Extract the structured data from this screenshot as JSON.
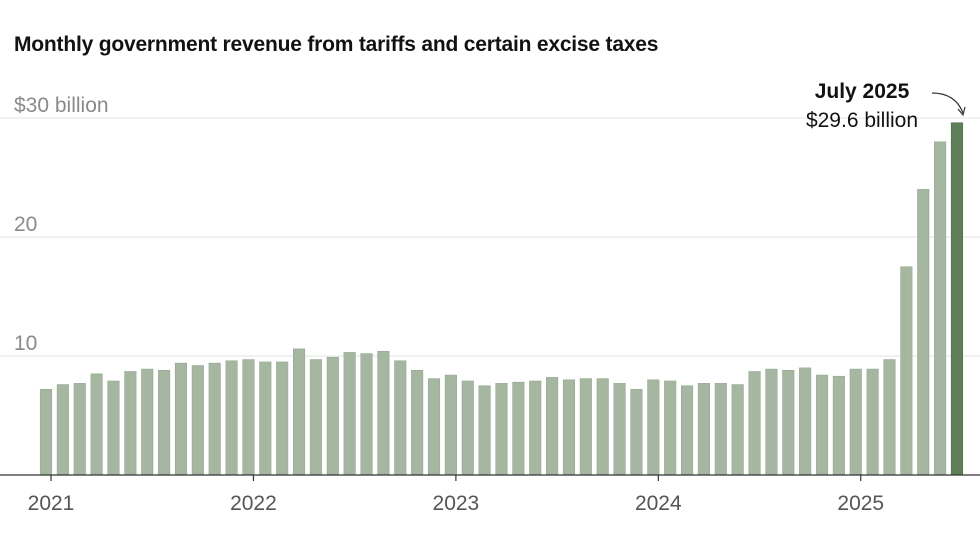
{
  "chart_data": {
    "type": "bar",
    "title": "Monthly government revenue from tariffs and certain excise taxes",
    "xlabel": "",
    "ylabel": "",
    "unit": "$ billion",
    "ylim": [
      0,
      30
    ],
    "grid": true,
    "y_ticks": [
      {
        "value": 30,
        "label": "$30 billion"
      },
      {
        "value": 20,
        "label": "20"
      },
      {
        "value": 10,
        "label": "10"
      }
    ],
    "x_ticks": [
      {
        "index": 0,
        "label": "2021"
      },
      {
        "index": 12,
        "label": "2022"
      },
      {
        "index": 24,
        "label": "2023"
      },
      {
        "index": 36,
        "label": "2024"
      },
      {
        "index": 48,
        "label": "2025"
      }
    ],
    "categories": [
      "Jan 2021",
      "Feb 2021",
      "Mar 2021",
      "Apr 2021",
      "May 2021",
      "Jun 2021",
      "Jul 2021",
      "Aug 2021",
      "Sep 2021",
      "Oct 2021",
      "Nov 2021",
      "Dec 2021",
      "Jan 2022",
      "Feb 2022",
      "Mar 2022",
      "Apr 2022",
      "May 2022",
      "Jun 2022",
      "Jul 2022",
      "Aug 2022",
      "Sep 2022",
      "Oct 2022",
      "Nov 2022",
      "Dec 2022",
      "Jan 2023",
      "Feb 2023",
      "Mar 2023",
      "Apr 2023",
      "May 2023",
      "Jun 2023",
      "Jul 2023",
      "Aug 2023",
      "Sep 2023",
      "Oct 2023",
      "Nov 2023",
      "Dec 2023",
      "Jan 2024",
      "Feb 2024",
      "Mar 2024",
      "Apr 2024",
      "May 2024",
      "Jun 2024",
      "Jul 2024",
      "Aug 2024",
      "Sep 2024",
      "Oct 2024",
      "Nov 2024",
      "Dec 2024",
      "Jan 2025",
      "Feb 2025",
      "Mar 2025",
      "Apr 2025",
      "May 2025",
      "Jun 2025",
      "Jul 2025"
    ],
    "values": [
      7.2,
      7.6,
      7.7,
      8.5,
      7.9,
      8.7,
      8.9,
      8.8,
      9.4,
      9.2,
      9.4,
      9.6,
      9.7,
      9.5,
      9.5,
      10.6,
      9.7,
      9.9,
      10.3,
      10.2,
      10.4,
      9.6,
      8.8,
      8.1,
      8.4,
      7.9,
      7.5,
      7.7,
      7.8,
      7.9,
      8.2,
      8.0,
      8.1,
      8.1,
      7.7,
      7.2,
      8.0,
      7.9,
      7.5,
      7.7,
      7.7,
      7.6,
      8.7,
      8.9,
      8.8,
      9.0,
      8.4,
      8.3,
      8.9,
      8.9,
      9.7,
      17.5,
      24.0,
      28.0,
      29.6
    ],
    "highlight_index": 54,
    "colors": {
      "bar": "#a5b7a1",
      "highlight": "#5f7f58",
      "grid": "#e3e3e3",
      "axis": "#333333"
    },
    "annotation": {
      "title": "July 2025",
      "value": "$29.6 billion"
    }
  }
}
